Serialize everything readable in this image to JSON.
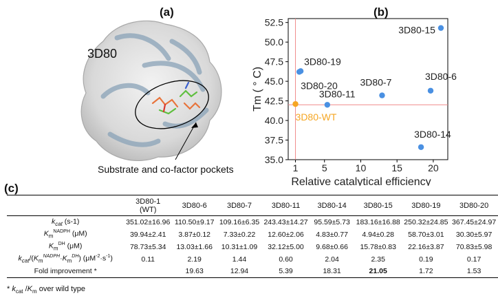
{
  "panels": {
    "a": "(a)",
    "b": "(b)",
    "c": "(c)"
  },
  "protein": {
    "name": "3D80",
    "caption": "Substrate and co-factor pockets"
  },
  "chart_data": {
    "type": "scatter",
    "xlabel": "Relative catalytical efficiency",
    "ylabel": "Tm ( ° C)",
    "xlim": [
      0,
      22
    ],
    "ylim": [
      35,
      53
    ],
    "xticks": [
      "1",
      "5",
      "10",
      "15",
      "20"
    ],
    "xtick_values": [
      1,
      5,
      10,
      15,
      20
    ],
    "yticks": [
      "35.0",
      "37.5",
      "40.0",
      "42.5",
      "45.0",
      "47.5",
      "50.0",
      "52.5"
    ],
    "ytick_values": [
      35.0,
      37.5,
      40.0,
      42.5,
      45.0,
      47.5,
      50.0,
      52.5
    ],
    "reference_lines": {
      "x": 1,
      "y": 42.0,
      "color": "#f08a8a"
    },
    "points": [
      {
        "label": "3D80-WT",
        "x": 1.0,
        "y": 42.1,
        "color": "#f5a623",
        "label_color": "#f5a623"
      },
      {
        "label": "3D80-19",
        "x": 1.72,
        "y": 46.3,
        "color": "#4a90e2",
        "label_color": "#222222"
      },
      {
        "label": "3D80-20",
        "x": 1.53,
        "y": 46.2,
        "color": "#4a90e2",
        "label_color": "#222222"
      },
      {
        "label": "3D80-11",
        "x": 5.39,
        "y": 42.0,
        "color": "#4a90e2",
        "label_color": "#222222"
      },
      {
        "label": "3D80-7",
        "x": 12.94,
        "y": 43.2,
        "color": "#4a90e2",
        "label_color": "#222222"
      },
      {
        "label": "3D80-6",
        "x": 19.63,
        "y": 43.8,
        "color": "#4a90e2",
        "label_color": "#222222"
      },
      {
        "label": "3D80-14",
        "x": 18.31,
        "y": 36.6,
        "color": "#4a90e2",
        "label_color": "#222222"
      },
      {
        "label": "3D80-15",
        "x": 21.05,
        "y": 51.8,
        "color": "#4a90e2",
        "label_color": "#222222"
      }
    ]
  },
  "table": {
    "columns": [
      "3D80-1\n(WT)",
      "3D80-6",
      "3D80-7",
      "3D80-11",
      "3D80-14",
      "3D80-15",
      "3D80-19",
      "3D80-20"
    ],
    "rows": [
      {
        "label": "k_cat (s-1)",
        "values": [
          "351.02±16.96",
          "110.50±9.17",
          "109.16±6.35",
          "243.43±14.27",
          "95.59±5.73",
          "183.16±16.88",
          "250.32±24.85",
          "367.45±24.97"
        ]
      },
      {
        "label": "Km NADPH (μM)",
        "values": [
          "39.94±2.41",
          "3.87±0.12",
          "7.33±0.22",
          "12.60±2.06",
          "4.83±0.77",
          "4.94±0.28",
          "58.70±3.01",
          "30.30±5.97"
        ]
      },
      {
        "label": "Km DH (μM)",
        "values": [
          "78.73±5.34",
          "13.03±1.66",
          "10.31±1.09",
          "32.12±5.00",
          "9.68±0.66",
          "15.78±0.83",
          "22.16±3.87",
          "70.83±5.98"
        ]
      },
      {
        "label": "kcat/(Km NADPH·Km DH) (μM-2·s-1)",
        "values": [
          "0.11",
          "2.19",
          "1.44",
          "0.60",
          "2.04",
          "2.35",
          "0.19",
          "0.17"
        ]
      },
      {
        "label": "Fold improvement *",
        "values": [
          "",
          "19.63",
          "12.94",
          "5.39",
          "18.31",
          "21.05",
          "1.72",
          "1.53"
        ],
        "bold_index": 5
      }
    ],
    "footnote": "* kcat /Km over wild type"
  }
}
